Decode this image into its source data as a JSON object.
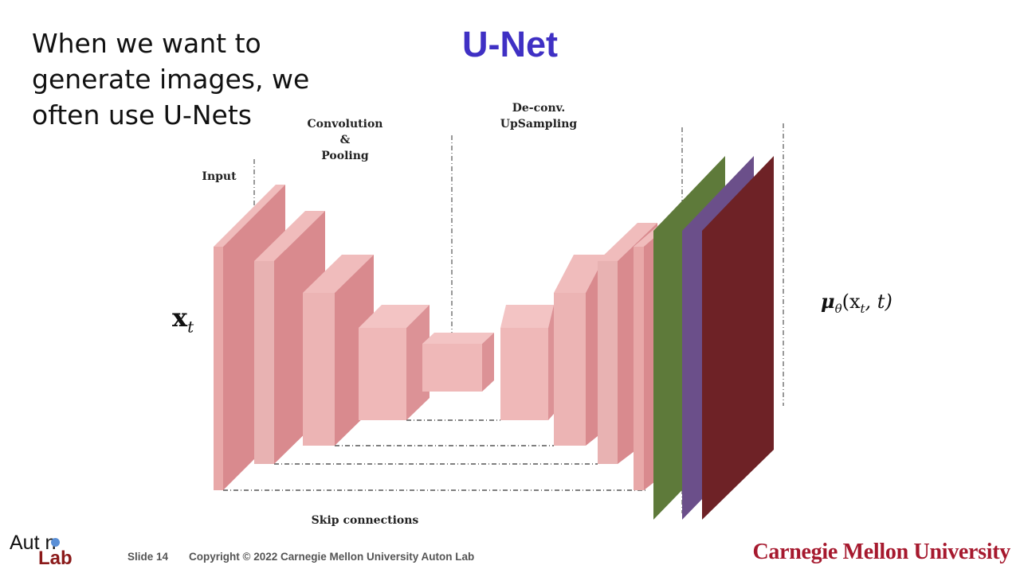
{
  "slide": {
    "intro_text": "When we want to generate images, we often use U-Nets",
    "title": "U-Net"
  },
  "diagram": {
    "labels": {
      "input": "Input",
      "conv_line1": "Convolution",
      "conv_line2": "&",
      "conv_line3": "Pooling",
      "deconv_line1": "De-conv.",
      "deconv_line2": "UpSampling",
      "skip": "Skip connections"
    },
    "math": {
      "input": "x",
      "input_sub": "t",
      "output": "μ",
      "output_sub": "θ",
      "output_args_prefix": "(x",
      "output_args_sub": "t",
      "output_args_suffix": ", t)"
    },
    "colors": {
      "block_light": "#f0bcbc",
      "block_front": "#e8a8a8",
      "block_side": "#d98a8e",
      "green": "#5e7a3a",
      "purple": "#6b4f8a",
      "red": "#6e2226"
    }
  },
  "footer": {
    "slide_number": "Slide 14",
    "copyright": "Copyright © 2022 Carnegie Mellon University Auton Lab",
    "logo_top": "Aut n",
    "logo_bottom": "Lab",
    "university": "Carnegie Mellon University"
  }
}
